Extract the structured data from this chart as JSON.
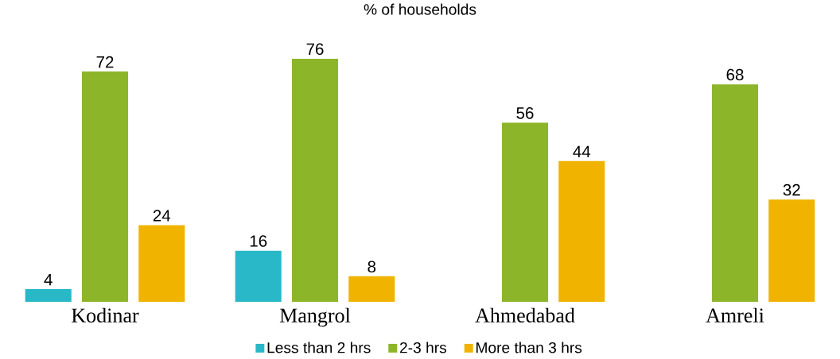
{
  "chart_data": {
    "type": "bar",
    "title": "% of households",
    "categories": [
      "Kodinar",
      "Mangrol",
      "Ahmedabad",
      "Amreli"
    ],
    "series": [
      {
        "name": "Less than 2 hrs",
        "color": "#29b8c8",
        "values": [
          4,
          16,
          null,
          null
        ]
      },
      {
        "name": "2-3 hrs",
        "color": "#8db52a",
        "values": [
          72,
          76,
          56,
          68
        ]
      },
      {
        "name": "More than 3 hrs",
        "color": "#f0b400",
        "values": [
          24,
          8,
          44,
          32
        ]
      }
    ],
    "data_labels": true,
    "legend": "bottom"
  }
}
